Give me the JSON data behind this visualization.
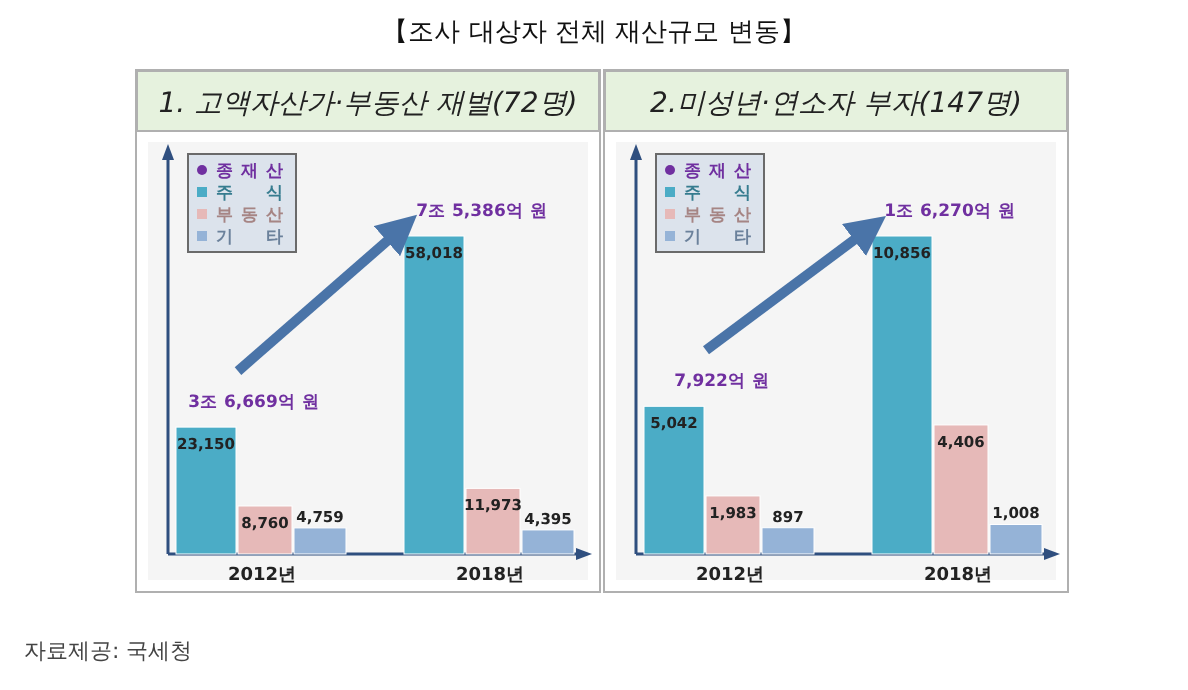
{
  "chart_data": [
    {
      "type": "bar",
      "title": "1. 고액자산가·부동산 재벌(72명)",
      "categories": [
        "2012년",
        "2018년"
      ],
      "series": [
        {
          "name": "주식",
          "color": "#4bacc6",
          "values": [
            23150,
            58018
          ],
          "value_labels": [
            "23,150",
            "58,018"
          ]
        },
        {
          "name": "부동산",
          "color": "#e6b9b8",
          "values": [
            8760,
            11973
          ],
          "value_labels": [
            "8,760",
            "11,973"
          ]
        },
        {
          "name": "기타",
          "color": "#95b3d7",
          "values": [
            4759,
            4395
          ],
          "value_labels": [
            "4,759",
            "4,395"
          ]
        }
      ],
      "totals": [
        "3조 6,669억 원",
        "7조 5,386억 원"
      ],
      "legend": "top left",
      "legend_title": "종재산",
      "annotations": [
        "【조사 대상자 전체 재산규모 변동】",
        "자료제공: 국세청"
      ]
    },
    {
      "type": "bar",
      "title": "2.미성년·연소자 부자(147명)",
      "categories": [
        "2012년",
        "2018년"
      ],
      "series": [
        {
          "name": "주식",
          "color": "#4bacc6",
          "values": [
            5042,
            10856
          ],
          "value_labels": [
            "5,042",
            "10,856"
          ]
        },
        {
          "name": "부동산",
          "color": "#e6b9b8",
          "values": [
            1983,
            4406
          ],
          "value_labels": [
            "1,983",
            "4,406"
          ]
        },
        {
          "name": "기타",
          "color": "#95b3d7",
          "values": [
            897,
            1008
          ],
          "value_labels": [
            "897",
            "1,008"
          ]
        }
      ],
      "totals": [
        "7,922억 원",
        "1조 6,270억 원"
      ],
      "legend": "top left",
      "legend_title": "종재산"
    }
  ]
}
